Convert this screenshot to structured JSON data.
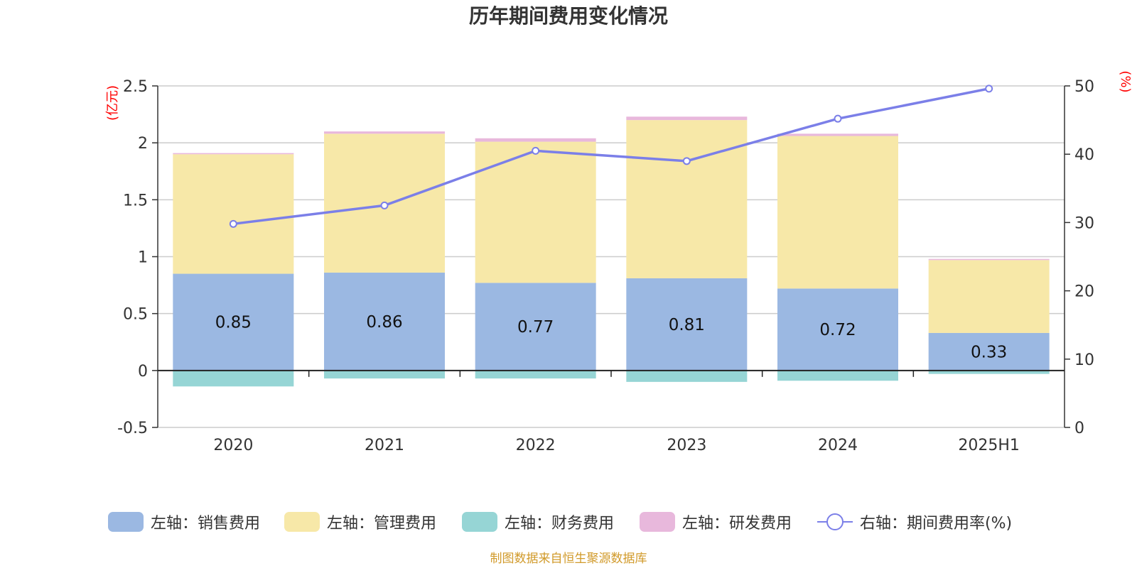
{
  "chart_data": {
    "type": "bar",
    "title": "历年期间费用变化情况",
    "categories": [
      "2020",
      "2021",
      "2022",
      "2023",
      "2024",
      "2025H1"
    ],
    "left_axis": {
      "unit": "(亿元)",
      "ylim": [
        -0.5,
        2.5
      ],
      "ticks": [
        "2.5",
        "2",
        "1.5",
        "1",
        "0.5",
        "0",
        "-0.5"
      ],
      "tick_values": [
        2.5,
        2,
        1.5,
        1,
        0.5,
        0,
        -0.5
      ]
    },
    "right_axis": {
      "unit": "(%)",
      "ylim": [
        0,
        50
      ],
      "ticks": [
        "50",
        "40",
        "30",
        "20",
        "10",
        "0"
      ],
      "tick_values": [
        50,
        40,
        30,
        20,
        10,
        0
      ]
    },
    "series": [
      {
        "name": "左轴：销售费用",
        "axis": "left",
        "type": "bar",
        "color": "#9bb8e2",
        "values": [
          0.85,
          0.86,
          0.77,
          0.81,
          0.72,
          0.33
        ],
        "labels": [
          "0.85",
          "0.86",
          "0.77",
          "0.81",
          "0.72",
          "0.33"
        ]
      },
      {
        "name": "左轴：管理费用",
        "axis": "left",
        "type": "bar",
        "color": "#f7e8a8",
        "values": [
          1.05,
          1.22,
          1.24,
          1.39,
          1.34,
          0.64
        ]
      },
      {
        "name": "左轴：财务费用",
        "axis": "left",
        "type": "bar",
        "color": "#96d5d5",
        "values": [
          -0.14,
          -0.07,
          -0.07,
          -0.1,
          -0.09,
          -0.03
        ]
      },
      {
        "name": "左轴：研发费用",
        "axis": "left",
        "type": "bar",
        "color": "#e8b8dc",
        "values": [
          0.01,
          0.02,
          0.03,
          0.03,
          0.02,
          0.01
        ]
      },
      {
        "name": "右轴：期间费用率(%)",
        "axis": "right",
        "type": "line",
        "color": "#7b7fe8",
        "values": [
          29.8,
          32.5,
          40.5,
          39.0,
          45.2,
          49.6
        ]
      }
    ],
    "grid": true,
    "legend_position": "bottom"
  },
  "source": "制图数据来自恒生聚源数据库"
}
